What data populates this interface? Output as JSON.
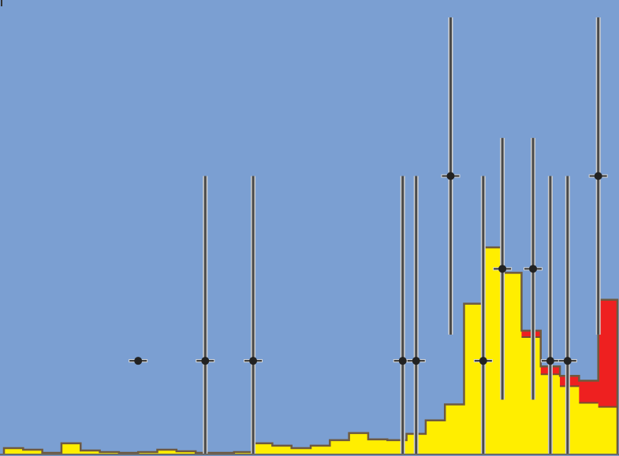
{
  "chart_data": {
    "type": "bar",
    "title": "",
    "xlabel": "",
    "ylabel": "",
    "xlim": [
      0,
      32
    ],
    "ylim": [
      0,
      5.6
    ],
    "grid": false,
    "legend": "none",
    "bin_width": 1,
    "bins": [
      0,
      1,
      2,
      3,
      4,
      5,
      6,
      7,
      8,
      9,
      10,
      11,
      12,
      13,
      14,
      15,
      16,
      17,
      18,
      19,
      20,
      21,
      22,
      23,
      24,
      25,
      26,
      27,
      28,
      29,
      30,
      31
    ],
    "series": [
      {
        "color": "#ffee00",
        "values": [
          0.07,
          0.05,
          0.01,
          0.13,
          0.04,
          0.02,
          0.01,
          0.02,
          0.05,
          0.03,
          0.01,
          0.01,
          0.02,
          0.13,
          0.1,
          0.07,
          0.1,
          0.17,
          0.26,
          0.18,
          0.17,
          0.25,
          0.42,
          0.62,
          1.89,
          2.6,
          2.28,
          1.47,
          1.0,
          0.85,
          0.64,
          0.59
        ]
      },
      {
        "color": "#ee2020",
        "values": [
          0,
          0,
          0,
          0,
          0,
          0,
          0,
          0,
          0,
          0,
          0,
          0,
          0,
          0,
          0,
          0,
          0,
          0,
          0,
          0,
          0,
          0,
          0,
          0,
          0,
          0,
          0,
          0.08,
          0.1,
          0.13,
          0.28,
          1.35
        ]
      }
    ],
    "data_points": [
      {
        "x": 7.0,
        "y": 1.17,
        "yerr_low": 0,
        "yerr_high": 0
      },
      {
        "x": 10.5,
        "y": 1.17,
        "yerr_low": 1.17,
        "yerr_high": 2.33
      },
      {
        "x": 13.0,
        "y": 1.17,
        "yerr_low": 1.17,
        "yerr_high": 2.33
      },
      {
        "x": 20.8,
        "y": 1.17,
        "yerr_low": 1.17,
        "yerr_high": 2.33
      },
      {
        "x": 21.5,
        "y": 1.17,
        "yerr_low": 1.17,
        "yerr_high": 2.33
      },
      {
        "x": 23.3,
        "y": 3.5,
        "yerr_low": 2.0,
        "yerr_high": 2.0
      },
      {
        "x": 25.0,
        "y": 1.17,
        "yerr_low": 1.17,
        "yerr_high": 2.33
      },
      {
        "x": 26.0,
        "y": 2.33,
        "yerr_low": 1.65,
        "yerr_high": 1.65
      },
      {
        "x": 27.6,
        "y": 2.33,
        "yerr_low": 1.65,
        "yerr_high": 1.65
      },
      {
        "x": 28.5,
        "y": 1.17,
        "yerr_low": 1.17,
        "yerr_high": 2.33
      },
      {
        "x": 29.4,
        "y": 1.17,
        "yerr_low": 1.17,
        "yerr_high": 2.33
      },
      {
        "x": 31.0,
        "y": 3.5,
        "yerr_low": 2.0,
        "yerr_high": 2.0
      }
    ]
  }
}
